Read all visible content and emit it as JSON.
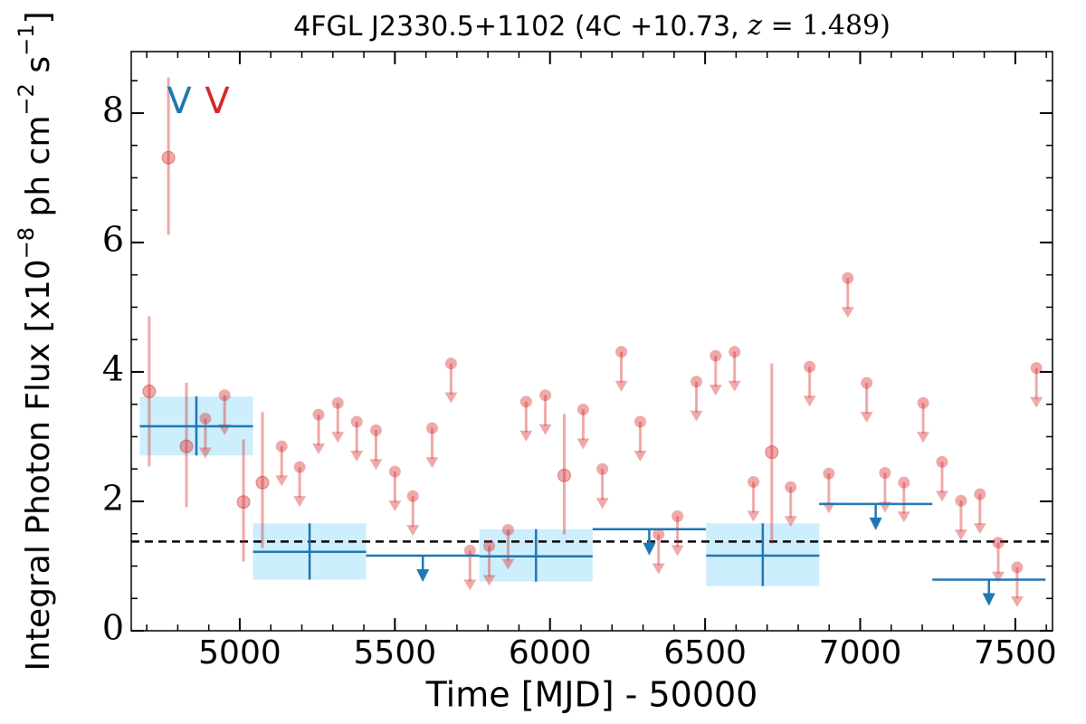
{
  "chart_data": {
    "type": "lightcurve",
    "title": [
      "4FGL J2330.5+1102 (4C +10.73, ",
      "z",
      " = 1.489)"
    ],
    "x_label": "Time [MJD] - 50000",
    "y_label": [
      "Integral Photon Flux [x10",
      "−8",
      " ph cm",
      "−2",
      " s",
      "−1",
      "]"
    ],
    "xlim": [
      4650,
      7620
    ],
    "ylim": [
      0,
      8.95
    ],
    "xticks": [
      5000,
      5500,
      6000,
      6500,
      7000,
      7500
    ],
    "yticks": [
      0,
      2,
      4,
      6,
      8
    ],
    "xticks_minor": [
      4700,
      4800,
      4900,
      5000,
      5100,
      5200,
      5300,
      5400,
      5500,
      5600,
      5700,
      5800,
      5900,
      6000,
      6100,
      6200,
      6300,
      6400,
      6500,
      6600,
      6700,
      6800,
      6900,
      7000,
      7100,
      7200,
      7300,
      7400,
      7500,
      7600
    ],
    "yticks_minor": [
      0,
      0.5,
      1,
      1.5,
      2,
      2.5,
      3,
      3.5,
      4,
      4.5,
      5,
      5.5,
      6,
      6.5,
      7,
      7.5,
      8,
      8.5
    ],
    "reference_line": 1.38,
    "series": [
      {
        "name": "V",
        "color": "#1f77b4",
        "box_color": "#cdeefc",
        "x": [
          4860,
          5225,
          5590,
          5955,
          6320,
          6686,
          7050,
          7415
        ],
        "x_err": [
          182.5,
          182.5,
          182.5,
          182.5,
          182.5,
          182.5,
          182.5,
          182.5
        ],
        "values": [
          3.16,
          1.22,
          1.16,
          1.15,
          1.57,
          1.16,
          1.96,
          0.79
        ],
        "err_minus": [
          0.45,
          0.43,
          null,
          0.39,
          null,
          0.47,
          null,
          null
        ],
        "err_plus": [
          0.46,
          0.44,
          null,
          0.42,
          null,
          0.5,
          null,
          null
        ],
        "upper_limit": [
          false,
          false,
          true,
          false,
          true,
          false,
          true,
          true
        ]
      },
      {
        "name": "V",
        "color": "#d62728",
        "x": [
          4708,
          4770,
          4828,
          4889,
          4951,
          5012,
          5073,
          5135,
          5193,
          5254,
          5316,
          5377,
          5439,
          5500,
          5558,
          5620,
          5681,
          5742,
          5804,
          5865,
          5923,
          5985,
          6046,
          6107,
          6169,
          6230,
          6291,
          6350,
          6411,
          6472,
          6534,
          6595,
          6656,
          6715,
          6776,
          6837,
          6899,
          6960,
          7021,
          7080,
          7141,
          7203,
          7264,
          7325,
          7386,
          7445,
          7506,
          7568
        ],
        "values": [
          3.7,
          7.31,
          2.85,
          3.28,
          3.64,
          1.99,
          2.29,
          2.85,
          2.53,
          3.34,
          3.52,
          3.23,
          3.1,
          2.46,
          2.08,
          3.13,
          4.13,
          1.24,
          1.31,
          1.56,
          3.54,
          3.64,
          2.4,
          3.42,
          2.5,
          4.31,
          3.23,
          1.49,
          1.77,
          3.85,
          4.25,
          4.31,
          2.3,
          2.76,
          2.22,
          4.08,
          2.43,
          5.45,
          3.83,
          2.44,
          2.29,
          3.52,
          2.61,
          2.01,
          2.11,
          1.36,
          0.98,
          4.06
        ],
        "err_minus": [
          1.16,
          1.19,
          0.94,
          null,
          null,
          0.92,
          1.01,
          null,
          null,
          null,
          null,
          null,
          null,
          null,
          null,
          null,
          null,
          null,
          null,
          null,
          null,
          null,
          0.91,
          null,
          null,
          null,
          null,
          null,
          null,
          null,
          null,
          null,
          null,
          1.41,
          null,
          null,
          null,
          null,
          null,
          null,
          null,
          null,
          null,
          null,
          null,
          null,
          null,
          null
        ],
        "err_plus": [
          1.16,
          1.24,
          0.98,
          null,
          null,
          0.97,
          1.09,
          null,
          null,
          null,
          null,
          null,
          null,
          null,
          null,
          null,
          null,
          null,
          null,
          null,
          null,
          null,
          0.95,
          null,
          null,
          null,
          null,
          null,
          null,
          null,
          null,
          null,
          null,
          1.37,
          null,
          null,
          null,
          null,
          null,
          null,
          null,
          null,
          null,
          null,
          null,
          null,
          null,
          null
        ],
        "upper_limit": [
          false,
          false,
          false,
          true,
          true,
          false,
          false,
          true,
          true,
          true,
          true,
          true,
          true,
          true,
          true,
          true,
          true,
          true,
          true,
          true,
          true,
          true,
          false,
          true,
          true,
          true,
          true,
          true,
          true,
          true,
          true,
          true,
          true,
          false,
          true,
          true,
          true,
          true,
          true,
          true,
          true,
          true,
          true,
          true,
          true,
          true,
          true,
          true
        ]
      }
    ]
  }
}
